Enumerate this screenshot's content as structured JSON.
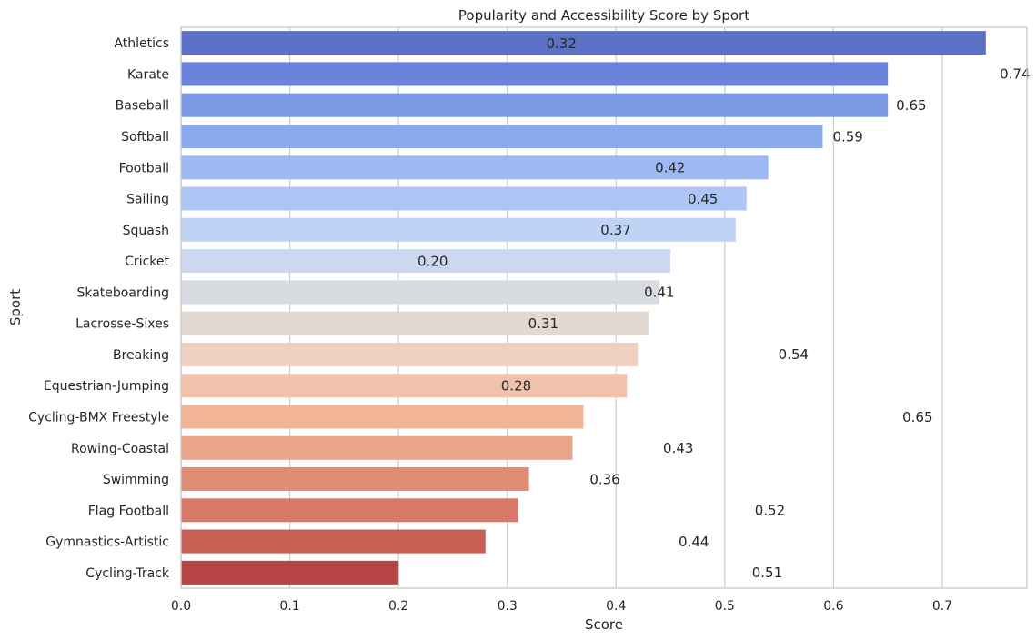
{
  "chart_data": {
    "type": "bar",
    "orientation": "horizontal",
    "title": "Popularity and Accessibility Score by Sport",
    "xlabel": "Score",
    "ylabel": "Sport",
    "xlim": [
      0,
      0.7778
    ],
    "xticks": [
      0.0,
      0.1,
      0.2,
      0.3,
      0.4,
      0.5,
      0.6,
      0.7
    ],
    "xtick_labels": [
      "0.0",
      "0.1",
      "0.2",
      "0.3",
      "0.4",
      "0.5",
      "0.6",
      "0.7"
    ],
    "grid": true,
    "categories": [
      "Athletics",
      "Karate",
      "Baseball",
      "Softball",
      "Football",
      "Sailing",
      "Squash",
      "Cricket",
      "Skateboarding",
      "Lacrosse-Sixes",
      "Breaking",
      "Equestrian-Jumping",
      "Cycling-BMX Freestyle",
      "Rowing-Coastal",
      "Swimming",
      "Flag Football",
      "Gymnastics-Artistic",
      "Cycling-Track"
    ],
    "values": [
      0.74,
      0.65,
      0.65,
      0.59,
      0.54,
      0.52,
      0.51,
      0.45,
      0.44,
      0.43,
      0.42,
      0.41,
      0.37,
      0.36,
      0.32,
      0.31,
      0.28,
      0.2
    ],
    "annotations": [
      {
        "text": "0.32",
        "x": 0.3358,
        "y": 0.0
      },
      {
        "text": "0.74",
        "x": 0.7528,
        "y": 0.98
      },
      {
        "text": "0.65",
        "x": 0.6575,
        "y": 1.98
      },
      {
        "text": "0.59",
        "x": 0.5992,
        "y": 2.98
      },
      {
        "text": "0.42",
        "x": 0.4358,
        "y": 3.98
      },
      {
        "text": "0.45",
        "x": 0.4658,
        "y": 4.98
      },
      {
        "text": "0.37",
        "x": 0.3858,
        "y": 5.98
      },
      {
        "text": "0.20",
        "x": 0.2175,
        "y": 6.98
      },
      {
        "text": "0.41",
        "x": 0.4258,
        "y": 7.98
      },
      {
        "text": "0.31",
        "x": 0.3192,
        "y": 8.98
      },
      {
        "text": "0.54",
        "x": 0.5492,
        "y": 9.98
      },
      {
        "text": "0.28",
        "x": 0.2942,
        "y": 10.98
      },
      {
        "text": "0.65",
        "x": 0.6633,
        "y": 11.98
      },
      {
        "text": "0.43",
        "x": 0.4433,
        "y": 12.98
      },
      {
        "text": "0.36",
        "x": 0.3758,
        "y": 13.98
      },
      {
        "text": "0.52",
        "x": 0.5275,
        "y": 14.98
      },
      {
        "text": "0.44",
        "x": 0.4575,
        "y": 15.98
      },
      {
        "text": "0.51",
        "x": 0.525,
        "y": 16.98
      }
    ],
    "colors": [
      "#5b71c6",
      "#6a84dd",
      "#7a99e4",
      "#8aaaf0",
      "#9db8f3",
      "#adc6f5",
      "#bfd3f5",
      "#cbd8ef",
      "#d8dbe2",
      "#e3d9d3",
      "#eecfc2",
      "#f0c2ac",
      "#f1b497",
      "#e9a48a",
      "#e08d75",
      "#d87867",
      "#c85f55",
      "#b84546"
    ]
  }
}
